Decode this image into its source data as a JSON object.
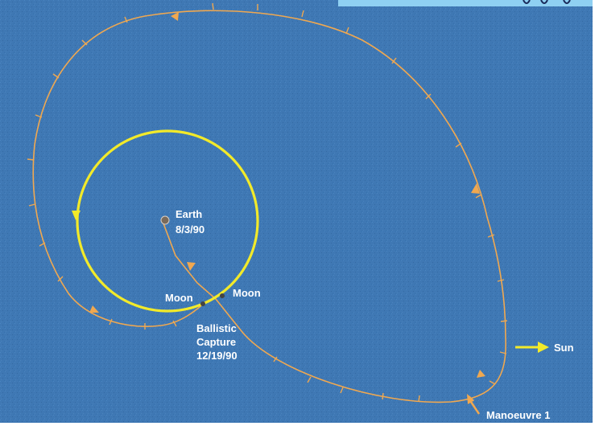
{
  "labels": {
    "earth": "Earth",
    "launch_date": "8/3/90",
    "moon_left": "Moon",
    "moon_right": "Moon",
    "capture_line1": "Ballistic",
    "capture_line2": "Capture",
    "capture_date": "12/19/90",
    "sun": "Sun",
    "manoeuvre": "Manoeuvre 1"
  },
  "colors": {
    "background": "#3f78b4",
    "trajectory": "#f0a850",
    "moon_orbit": "#f2ea2a",
    "sun_arrow": "#f2ea2a",
    "text": "#ffffff",
    "top_band": "#8fd0f2"
  }
}
